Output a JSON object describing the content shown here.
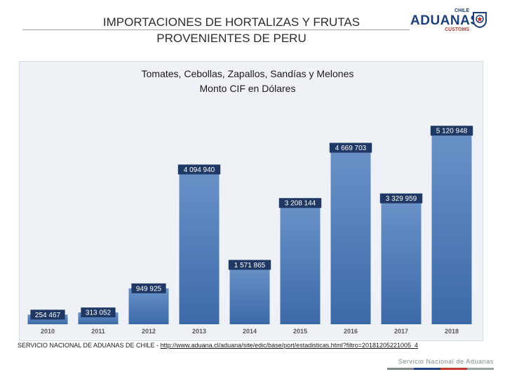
{
  "header": {
    "title_line1": "IMPORTACIONES DE HORTALIZAS Y FRUTAS",
    "title_line2": "PROVENIENTES DE PERU",
    "logo": {
      "top_text": "CHILE",
      "main_text": "ADUANAS",
      "sub_text": "CUSTOMS"
    }
  },
  "chart_data": {
    "type": "bar",
    "title": "Tomates, Cebollas, Zapallos, Sandías y Melones",
    "subtitle": "Monto CIF en Dólares",
    "categories": [
      "2010",
      "2011",
      "2012",
      "2013",
      "2014",
      "2015",
      "2016",
      "2017",
      "2018"
    ],
    "values": [
      254467,
      313052,
      949925,
      4094940,
      1571865,
      3208144,
      4669703,
      3329959,
      5120948
    ],
    "data_labels": [
      "254 467",
      "313 052",
      "949 925",
      "4 094 940",
      "1 571 865",
      "3 208 144",
      "4 669 703",
      "3 329 959",
      "5 120 948"
    ],
    "ylim": [
      0,
      5400000
    ],
    "grid": false,
    "legend": "none",
    "colors": {
      "bar_top": "#6a92c8",
      "bar_bottom": "#3b6aa8",
      "label_bg": "#1f3864",
      "label_text": "#ffffff",
      "panel": "#eef2f7",
      "tick_text": "#595959"
    }
  },
  "footer": {
    "source_prefix": "SERVICIO NACIONAL DE ADUANAS DE CHILE - ",
    "source_url": "http://www.aduana.cl/aduana/site/edic/base/port/estadisticas.html?filtro=20181205221005_4",
    "brand": "Servicio Nacional de Aduanas",
    "bar_colors": [
      "#7f8c8d",
      "#1d3f7a",
      "#c0392b",
      "#95a5a6"
    ]
  }
}
